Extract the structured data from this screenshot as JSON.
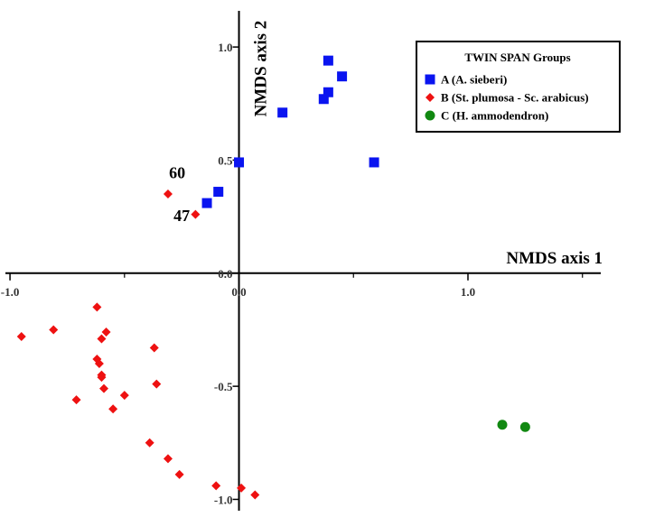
{
  "chart_data": {
    "type": "scatter",
    "xlabel": "NMDS axis 1",
    "ylabel": "NMDS axis 2",
    "xlim": [
      -1.02,
      1.58
    ],
    "ylim": [
      -1.05,
      1.16
    ],
    "x_ticks": [
      {
        "value": -1.0,
        "label": "-1.0"
      },
      {
        "value": 0.0,
        "label": "0.0"
      },
      {
        "value": 1.0,
        "label": "1.0"
      }
    ],
    "y_ticks": [
      {
        "value": 1.0,
        "label": "1.0"
      },
      {
        "value": 0.5,
        "label": "0.5"
      },
      {
        "value": 0.0,
        "label": "0.0"
      },
      {
        "value": -0.5,
        "label": "-0.5"
      },
      {
        "value": -1.0,
        "label": "-1.0"
      }
    ],
    "grid": false,
    "legend": {
      "title": "TWIN SPAN Groups",
      "position": "top-right"
    },
    "series": [
      {
        "name": "A (A. sieberi)",
        "marker": "square",
        "color": "#0a14f0",
        "points": [
          {
            "x": 0.39,
            "y": 0.94
          },
          {
            "x": 0.45,
            "y": 0.87
          },
          {
            "x": 0.39,
            "y": 0.8
          },
          {
            "x": 0.37,
            "y": 0.77
          },
          {
            "x": 0.19,
            "y": 0.71
          },
          {
            "x": 0.0,
            "y": 0.49
          },
          {
            "x": 0.59,
            "y": 0.49
          },
          {
            "x": -0.09,
            "y": 0.36
          },
          {
            "x": -0.14,
            "y": 0.31
          }
        ]
      },
      {
        "name": "B (St. plumosa - Sc. arabicus)",
        "marker": "diamond",
        "color": "#ee1111",
        "points": [
          {
            "x": -0.31,
            "y": 0.35
          },
          {
            "x": -0.19,
            "y": 0.26
          },
          {
            "x": -0.62,
            "y": -0.15
          },
          {
            "x": -0.81,
            "y": -0.25
          },
          {
            "x": -0.95,
            "y": -0.28
          },
          {
            "x": -0.58,
            "y": -0.26
          },
          {
            "x": -0.6,
            "y": -0.29
          },
          {
            "x": -0.37,
            "y": -0.33
          },
          {
            "x": -0.62,
            "y": -0.38
          },
          {
            "x": -0.61,
            "y": -0.4
          },
          {
            "x": -0.6,
            "y": -0.45
          },
          {
            "x": -0.6,
            "y": -0.46
          },
          {
            "x": -0.36,
            "y": -0.49
          },
          {
            "x": -0.59,
            "y": -0.51
          },
          {
            "x": -0.5,
            "y": -0.54
          },
          {
            "x": -0.71,
            "y": -0.56
          },
          {
            "x": -0.55,
            "y": -0.6
          },
          {
            "x": -0.39,
            "y": -0.75
          },
          {
            "x": -0.31,
            "y": -0.82
          },
          {
            "x": -0.26,
            "y": -0.89
          },
          {
            "x": -0.1,
            "y": -0.94
          },
          {
            "x": 0.01,
            "y": -0.95
          },
          {
            "x": 0.07,
            "y": -0.98
          }
        ]
      },
      {
        "name": "C (H. ammodendron)",
        "marker": "circle",
        "color": "#118811",
        "points": [
          {
            "x": 1.15,
            "y": -0.67
          },
          {
            "x": 1.25,
            "y": -0.68
          }
        ]
      }
    ],
    "annotations": [
      {
        "text": "60",
        "x": -0.27,
        "y": 0.42
      },
      {
        "text": "47",
        "x": -0.25,
        "y": 0.23
      }
    ]
  }
}
